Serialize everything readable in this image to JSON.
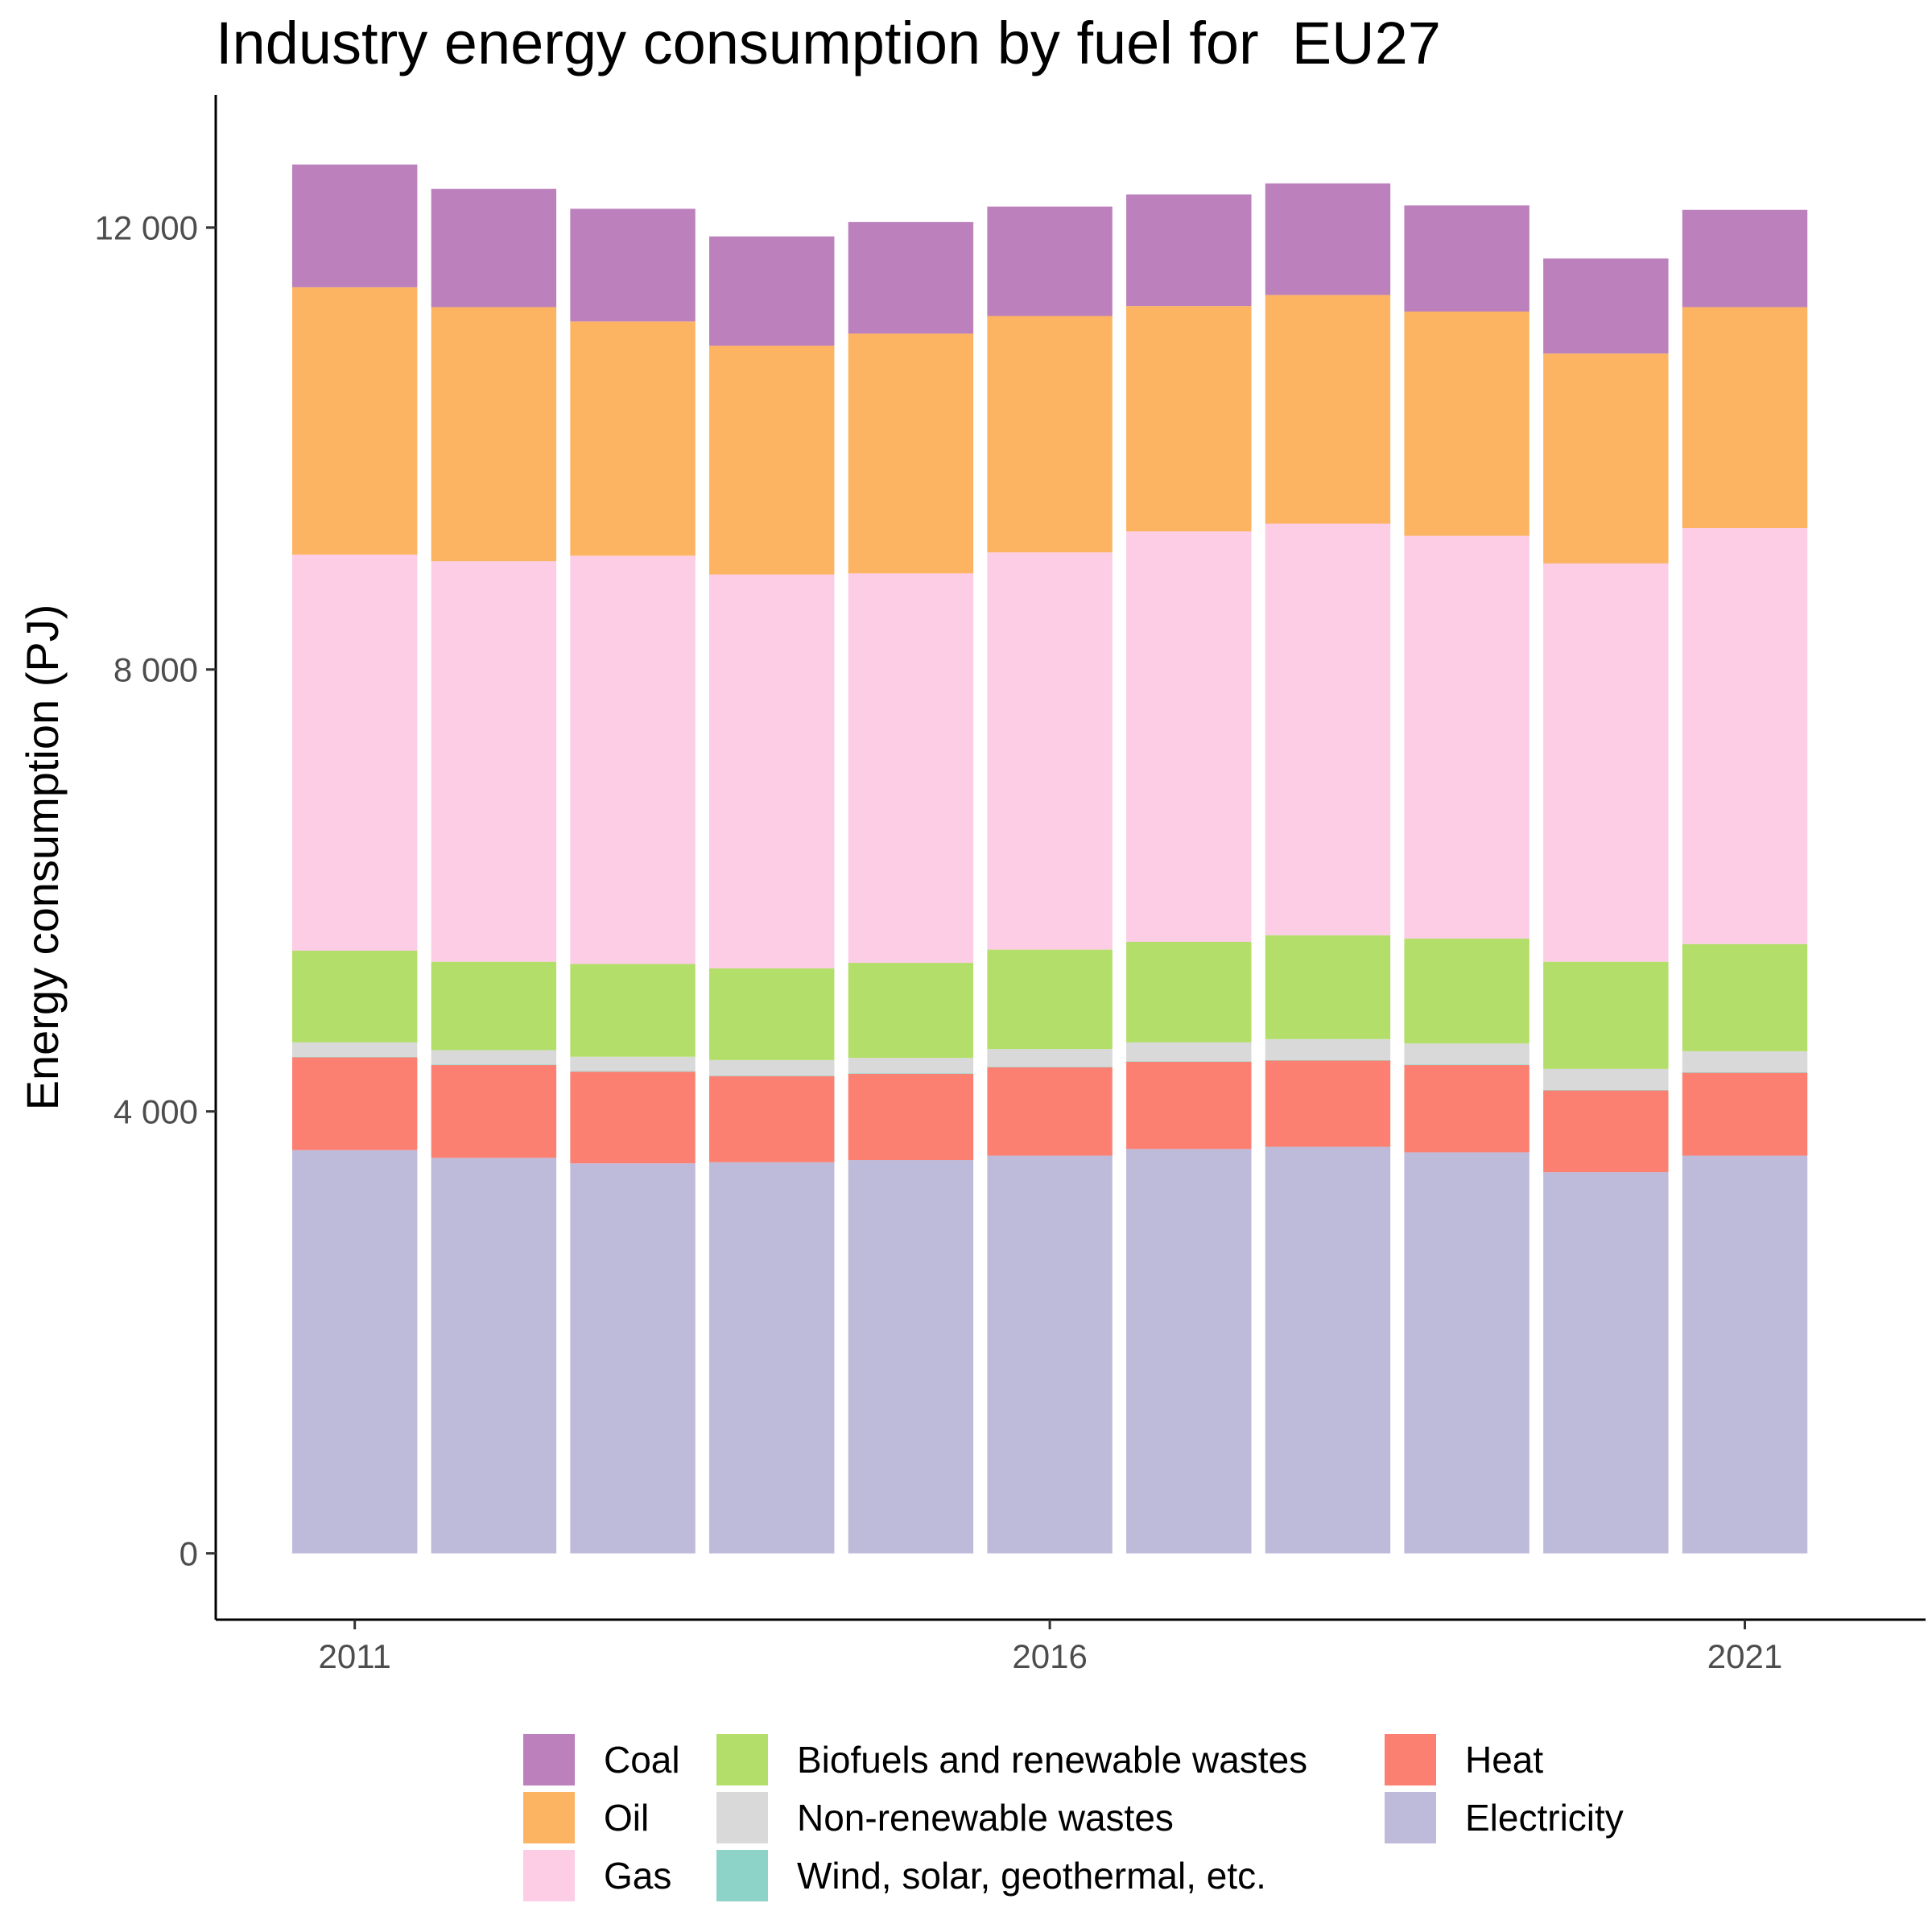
{
  "chart_data": {
    "type": "bar",
    "stacked": true,
    "title": "Industry energy consumption by fuel for  EU27",
    "xlabel": "",
    "ylabel": "Energy consumption (PJ)",
    "x_ticks": [
      "2011",
      "2016",
      "2021"
    ],
    "y_ticks": [
      "0",
      "4 000",
      "8 000",
      "12 000"
    ],
    "ylim": [
      -600,
      13200
    ],
    "xlim": [
      2010,
      2022.3
    ],
    "grid": false,
    "legend_position": "bottom",
    "categories": [
      2011,
      2012,
      2013,
      2014,
      2015,
      2016,
      2017,
      2018,
      2019,
      2020,
      2021
    ],
    "series": [
      {
        "name": "Electricity",
        "color": "#BEBADA",
        "values": [
          3650,
          3580,
          3530,
          3540,
          3560,
          3600,
          3660,
          3680,
          3630,
          3450,
          3600
        ]
      },
      {
        "name": "Heat",
        "color": "#FB8072",
        "values": [
          840,
          840,
          830,
          780,
          780,
          800,
          790,
          780,
          790,
          740,
          750
        ]
      },
      {
        "name": "Wind, solar, geothermal, etc.",
        "color": "#8DD3C7",
        "values": [
          5,
          5,
          5,
          5,
          5,
          5,
          5,
          5,
          5,
          5,
          5
        ]
      },
      {
        "name": "Non-renewable wastes",
        "color": "#D9D9D9",
        "values": [
          130,
          130,
          130,
          140,
          140,
          160,
          170,
          190,
          190,
          190,
          190
        ]
      },
      {
        "name": "Biofuels and renewable wastes",
        "color": "#B3DE69",
        "values": [
          830,
          800,
          840,
          830,
          860,
          900,
          910,
          940,
          950,
          970,
          970
        ]
      },
      {
        "name": "Gas",
        "color": "#FCCDE5",
        "values": [
          3585,
          3625,
          3695,
          3565,
          3525,
          3595,
          3715,
          3725,
          3645,
          3605,
          3765
        ]
      },
      {
        "name": "Oil",
        "color": "#FDB462",
        "values": [
          2420,
          2300,
          2120,
          2070,
          2170,
          2140,
          2040,
          2070,
          2030,
          1900,
          2000
        ]
      },
      {
        "name": "Coal",
        "color": "#BC80BD",
        "values": [
          1110,
          1070,
          1020,
          990,
          1010,
          990,
          1010,
          1010,
          960,
          860,
          880
        ]
      }
    ]
  },
  "legend": {
    "items": [
      {
        "label": "Coal",
        "color": "#BC80BD"
      },
      {
        "label": "Biofuels and renewable wastes",
        "color": "#B3DE69"
      },
      {
        "label": "Heat",
        "color": "#FB8072"
      },
      {
        "label": "Oil",
        "color": "#FDB462"
      },
      {
        "label": "Non-renewable wastes",
        "color": "#D9D9D9"
      },
      {
        "label": "Electricity",
        "color": "#BEBADA"
      },
      {
        "label": "Gas",
        "color": "#FCCDE5"
      },
      {
        "label": "Wind, solar, geothermal, etc.",
        "color": "#8DD3C7"
      },
      {
        "label": "",
        "color": ""
      }
    ]
  }
}
